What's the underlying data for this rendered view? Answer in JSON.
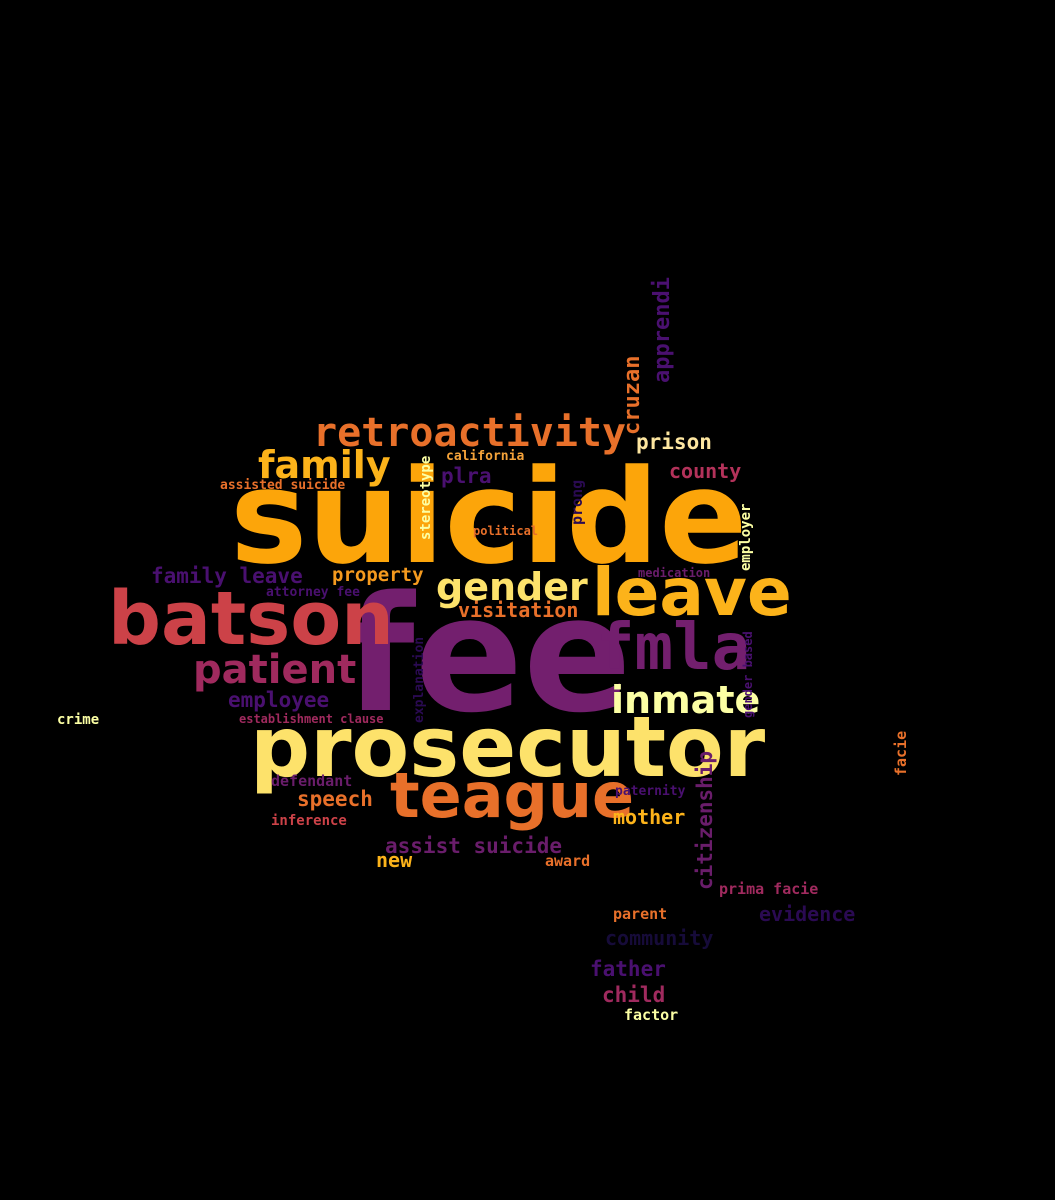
{
  "colors": {
    "background": "#000000",
    "palette": [
      "#fcffa4",
      "#f8d74a",
      "#fca50a",
      "#e8702a",
      "#cc4248",
      "#a02a5e",
      "#731f6e",
      "#4a1070",
      "#2a0a52",
      "#160b39"
    ]
  },
  "words": [
    {
      "text": "suicide",
      "color": "#fca50a"
    },
    {
      "text": "fee",
      "color": "#731f6e"
    },
    {
      "text": "prosecutor",
      "color": "#fde26b"
    },
    {
      "text": "batson",
      "color": "#cc4248"
    },
    {
      "text": "teague",
      "color": "#e8702a"
    },
    {
      "text": "leave",
      "color": "#fcb31a"
    },
    {
      "text": "fmla",
      "color": "#731f6e"
    },
    {
      "text": "retroactivity",
      "color": "#e8702a"
    },
    {
      "text": "patient",
      "color": "#a02a5e"
    },
    {
      "text": "family",
      "color": "#fcb31a"
    },
    {
      "text": "gender",
      "color": "#fde26b"
    },
    {
      "text": "inmate",
      "color": "#fcffa4"
    },
    {
      "text": "citizenship",
      "color": "#6a1d6b"
    },
    {
      "text": "apprendi",
      "color": "#4a1070"
    },
    {
      "text": "cruzan",
      "color": "#e8702a"
    },
    {
      "text": "prison",
      "color": "#fde6a0"
    },
    {
      "text": "county",
      "color": "#b3325a"
    },
    {
      "text": "plra",
      "color": "#4a1070"
    },
    {
      "text": "family leave",
      "color": "#4a1070"
    },
    {
      "text": "property",
      "color": "#f59a1e"
    },
    {
      "text": "visitation",
      "color": "#e8702a"
    },
    {
      "text": "speech",
      "color": "#e8702a"
    },
    {
      "text": "employee",
      "color": "#4a1070"
    },
    {
      "text": "assist suicide",
      "color": "#6a1d6b"
    },
    {
      "text": "mother",
      "color": "#fcb31a"
    },
    {
      "text": "father",
      "color": "#4a1070"
    },
    {
      "text": "child",
      "color": "#a02a5e"
    },
    {
      "text": "evidence",
      "color": "#2a0a52"
    },
    {
      "text": "community",
      "color": "#160b39"
    },
    {
      "text": "new",
      "color": "#fcb31a"
    },
    {
      "text": "award",
      "color": "#e8702a"
    },
    {
      "text": "prima facie",
      "color": "#a02a5e"
    },
    {
      "text": "parent",
      "color": "#e8702a"
    },
    {
      "text": "factor",
      "color": "#fcffa4"
    },
    {
      "text": "crime",
      "color": "#fcffa4"
    },
    {
      "text": "facie",
      "color": "#e8702a"
    },
    {
      "text": "stereotype",
      "color": "#fcffa4"
    },
    {
      "text": "california",
      "color": "#f5a33a"
    },
    {
      "text": "assisted suicide",
      "color": "#e8702a"
    },
    {
      "text": "attorney fee",
      "color": "#4a1070"
    },
    {
      "text": "political",
      "color": "#e8702a"
    },
    {
      "text": "medication",
      "color": "#6a1d6b"
    },
    {
      "text": "employer",
      "color": "#fcffa4"
    },
    {
      "text": "gender based",
      "color": "#4a1070"
    },
    {
      "text": "explanation",
      "color": "#2a0a52"
    },
    {
      "text": "establishment clause",
      "color": "#a02a5e"
    },
    {
      "text": "defendant",
      "color": "#6a1d6b"
    },
    {
      "text": "inference",
      "color": "#cc4248"
    },
    {
      "text": "paternity",
      "color": "#4a1070"
    },
    {
      "text": "prong",
      "color": "#2a0a52"
    }
  ]
}
